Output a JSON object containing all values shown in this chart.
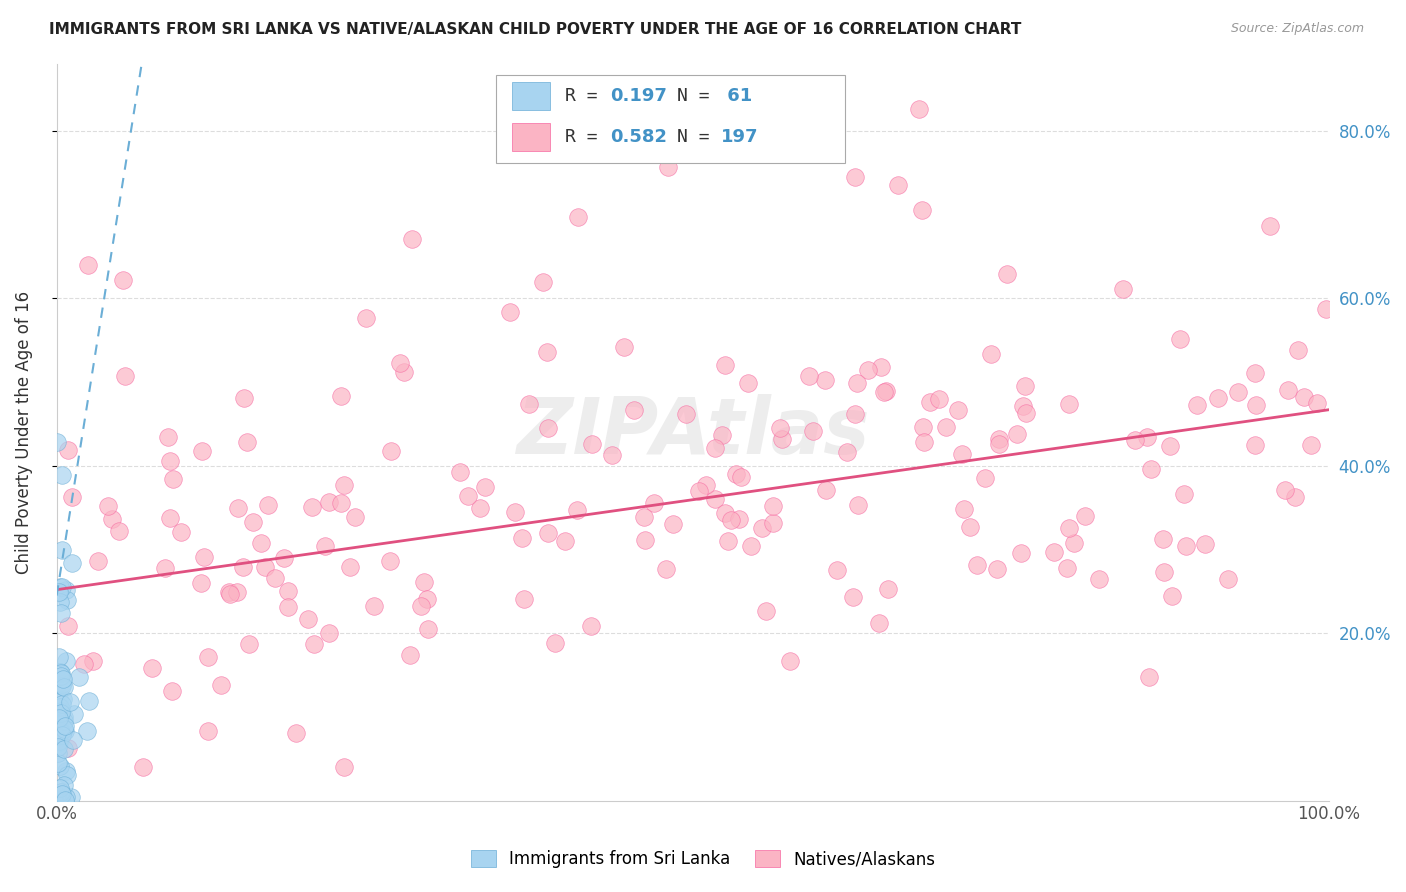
{
  "title": "IMMIGRANTS FROM SRI LANKA VS NATIVE/ALASKAN CHILD POVERTY UNDER THE AGE OF 16 CORRELATION CHART",
  "source": "Source: ZipAtlas.com",
  "ylabel": "Child Poverty Under the Age of 16",
  "xlim": [
    0,
    1.0
  ],
  "ylim": [
    0,
    0.88
  ],
  "xtick_positions": [
    0,
    1.0
  ],
  "xtick_labels": [
    "0.0%",
    "100.0%"
  ],
  "ytick_positions": [
    0.2,
    0.4,
    0.6,
    0.8
  ],
  "ytick_labels_right": [
    "20.0%",
    "40.0%",
    "60.0%",
    "80.0%"
  ],
  "blue_R": 0.197,
  "blue_N": 61,
  "pink_R": 0.582,
  "pink_N": 197,
  "blue_color": "#a8d4f0",
  "blue_edge_color": "#6baed6",
  "pink_color": "#fbb4c4",
  "pink_edge_color": "#f768a1",
  "blue_line_color": "#6baed6",
  "pink_line_color": "#e05080",
  "legend_label_blue": "Immigrants from Sri Lanka",
  "legend_label_pink": "Natives/Alaskans",
  "watermark": "ZIPAtlas",
  "background_color": "#ffffff",
  "grid_color": "#dddddd",
  "right_tick_color": "#4292c6",
  "pink_trend_intercept": 0.252,
  "pink_trend_slope": 0.215,
  "blue_trend_intercept": 0.245,
  "blue_trend_slope": 9.5
}
